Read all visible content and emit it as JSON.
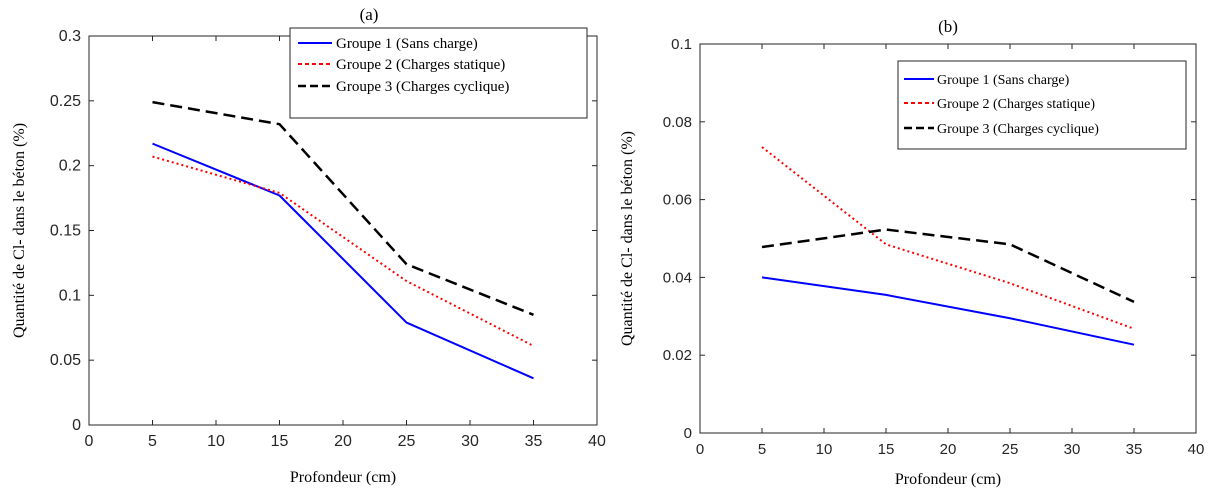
{
  "chart_data": [
    {
      "type": "line",
      "panel_label": "(a)",
      "xlabel": "Profondeur (cm)",
      "ylabel": "Quantité de Cl- dans le béton (%)",
      "xlim": [
        0,
        40
      ],
      "ylim": [
        0,
        0.3
      ],
      "x_ticks": [
        "0",
        "5",
        "10",
        "15",
        "20",
        "25",
        "30",
        "35",
        "40"
      ],
      "y_ticks": [
        "0",
        "0.05",
        "0.1",
        "0.15",
        "0.2",
        "0.25",
        "0.3"
      ],
      "grid": false,
      "legend_position": "top-right",
      "x": [
        5,
        15,
        25,
        35
      ],
      "series": [
        {
          "name": "Groupe 1 (Sans charge)",
          "color": "#0000ff",
          "style": "solid",
          "values": [
            0.217,
            0.177,
            0.079,
            0.036
          ]
        },
        {
          "name": "Groupe 2 (Charges statique)",
          "color": "#ff0000",
          "style": "dotted",
          "values": [
            0.207,
            0.179,
            0.111,
            0.061
          ]
        },
        {
          "name": "Groupe 3 (Charges cyclique)",
          "color": "#000000",
          "style": "dashed",
          "values": [
            0.249,
            0.232,
            0.124,
            0.085
          ]
        }
      ]
    },
    {
      "type": "line",
      "panel_label": "(b)",
      "xlabel": "Profondeur (cm)",
      "ylabel": "Quantité de Cl- dans le béton (%)",
      "xlim": [
        0,
        40
      ],
      "ylim": [
        0,
        0.1
      ],
      "x_ticks": [
        "0",
        "5",
        "10",
        "15",
        "20",
        "25",
        "30",
        "35",
        "40"
      ],
      "y_ticks": [
        "0",
        "0.02",
        "0.04",
        "0.06",
        "0.08",
        "0.1"
      ],
      "grid": false,
      "legend_position": "top-right",
      "x": [
        5,
        15,
        25,
        35
      ],
      "series": [
        {
          "name": "Groupe 1 (Sans charge)",
          "color": "#0000ff",
          "style": "solid",
          "values": [
            0.04,
            0.0355,
            0.0295,
            0.0227
          ]
        },
        {
          "name": "Groupe 2 (Charges statique)",
          "color": "#ff0000",
          "style": "dotted",
          "values": [
            0.0735,
            0.0485,
            0.0385,
            0.0268
          ]
        },
        {
          "name": "Groupe 3 (Charges cyclique)",
          "color": "#000000",
          "style": "dashed",
          "values": [
            0.0478,
            0.0523,
            0.0485,
            0.0337
          ]
        }
      ]
    }
  ]
}
